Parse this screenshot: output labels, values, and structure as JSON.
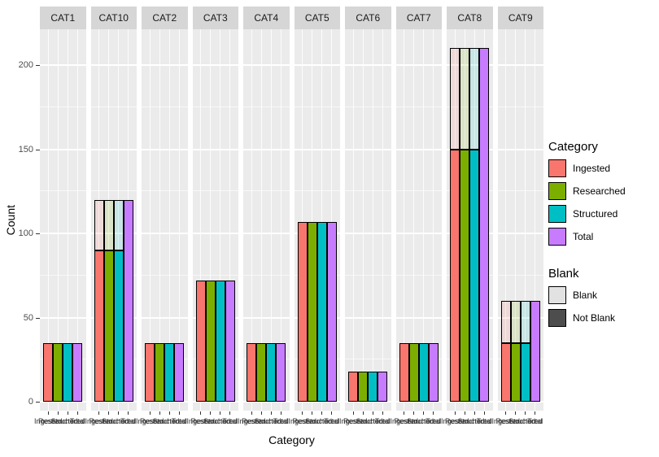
{
  "chart_data": {
    "type": "bar",
    "faceted": true,
    "title": "",
    "xlabel": "Category",
    "ylabel": "Count",
    "x_categories": [
      "Ingested",
      "Researched",
      "Structured",
      "Total"
    ],
    "y_ticks": [
      0,
      50,
      100,
      150,
      200
    ],
    "y_minor_ticks": [
      25,
      75,
      125,
      175
    ],
    "ylim": [
      0,
      220
    ],
    "grid": "on",
    "legend_position": "right",
    "colors": {
      "Ingested": "#F8766D",
      "Researched": "#7CAE00",
      "Structured": "#00BFC4",
      "Total": "#C77CFF"
    },
    "blank_overlay_alpha": 0.15,
    "theme": {
      "panel_background": "#EBEBEB",
      "strip_background": "#D6D6D6",
      "gridline_color": "#FFFFFF",
      "tick_text_color": "#4D4D4D",
      "bar_outline": "#000000"
    },
    "facets": [
      {
        "label": "CAT1",
        "bars": [
          {
            "category": "Ingested",
            "not_blank": 35,
            "blank": 0
          },
          {
            "category": "Researched",
            "not_blank": 35,
            "blank": 0
          },
          {
            "category": "Structured",
            "not_blank": 35,
            "blank": 0
          },
          {
            "category": "Total",
            "not_blank": 35,
            "blank": 0
          }
        ]
      },
      {
        "label": "CAT10",
        "bars": [
          {
            "category": "Ingested",
            "not_blank": 90,
            "blank": 30
          },
          {
            "category": "Researched",
            "not_blank": 90,
            "blank": 30
          },
          {
            "category": "Structured",
            "not_blank": 90,
            "blank": 30
          },
          {
            "category": "Total",
            "not_blank": 120,
            "blank": 0
          }
        ]
      },
      {
        "label": "CAT2",
        "bars": [
          {
            "category": "Ingested",
            "not_blank": 35,
            "blank": 0
          },
          {
            "category": "Researched",
            "not_blank": 35,
            "blank": 0
          },
          {
            "category": "Structured",
            "not_blank": 35,
            "blank": 0
          },
          {
            "category": "Total",
            "not_blank": 35,
            "blank": 0
          }
        ]
      },
      {
        "label": "CAT3",
        "bars": [
          {
            "category": "Ingested",
            "not_blank": 72,
            "blank": 0
          },
          {
            "category": "Researched",
            "not_blank": 72,
            "blank": 0
          },
          {
            "category": "Structured",
            "not_blank": 72,
            "blank": 0
          },
          {
            "category": "Total",
            "not_blank": 72,
            "blank": 0
          }
        ]
      },
      {
        "label": "CAT4",
        "bars": [
          {
            "category": "Ingested",
            "not_blank": 35,
            "blank": 0
          },
          {
            "category": "Researched",
            "not_blank": 35,
            "blank": 0
          },
          {
            "category": "Structured",
            "not_blank": 35,
            "blank": 0
          },
          {
            "category": "Total",
            "not_blank": 35,
            "blank": 0
          }
        ]
      },
      {
        "label": "CAT5",
        "bars": [
          {
            "category": "Ingested",
            "not_blank": 107,
            "blank": 0
          },
          {
            "category": "Researched",
            "not_blank": 107,
            "blank": 0
          },
          {
            "category": "Structured",
            "not_blank": 107,
            "blank": 0
          },
          {
            "category": "Total",
            "not_blank": 107,
            "blank": 0
          }
        ]
      },
      {
        "label": "CAT6",
        "bars": [
          {
            "category": "Ingested",
            "not_blank": 18,
            "blank": 0
          },
          {
            "category": "Researched",
            "not_blank": 18,
            "blank": 0
          },
          {
            "category": "Structured",
            "not_blank": 18,
            "blank": 0
          },
          {
            "category": "Total",
            "not_blank": 18,
            "blank": 0
          }
        ]
      },
      {
        "label": "CAT7",
        "bars": [
          {
            "category": "Ingested",
            "not_blank": 35,
            "blank": 0
          },
          {
            "category": "Researched",
            "not_blank": 35,
            "blank": 0
          },
          {
            "category": "Structured",
            "not_blank": 35,
            "blank": 0
          },
          {
            "category": "Total",
            "not_blank": 35,
            "blank": 0
          }
        ]
      },
      {
        "label": "CAT8",
        "bars": [
          {
            "category": "Ingested",
            "not_blank": 150,
            "blank": 60
          },
          {
            "category": "Researched",
            "not_blank": 150,
            "blank": 60
          },
          {
            "category": "Structured",
            "not_blank": 150,
            "blank": 60
          },
          {
            "category": "Total",
            "not_blank": 210,
            "blank": 0
          }
        ]
      },
      {
        "label": "CAT9",
        "bars": [
          {
            "category": "Ingested",
            "not_blank": 35,
            "blank": 25
          },
          {
            "category": "Researched",
            "not_blank": 35,
            "blank": 25
          },
          {
            "category": "Structured",
            "not_blank": 35,
            "blank": 25
          },
          {
            "category": "Total",
            "not_blank": 60,
            "blank": 0
          }
        ]
      }
    ],
    "legends": [
      {
        "title": "Category",
        "items": [
          {
            "label": "Ingested",
            "color": "#F8766D"
          },
          {
            "label": "Researched",
            "color": "#7CAE00"
          },
          {
            "label": "Structured",
            "color": "#00BFC4"
          },
          {
            "label": "Total",
            "color": "#C77CFF"
          }
        ]
      },
      {
        "title": "Blank",
        "items": [
          {
            "label": "Blank",
            "color": "#E2E2E2"
          },
          {
            "label": "Not Blank",
            "color": "#4D4D4D"
          }
        ]
      }
    ]
  }
}
